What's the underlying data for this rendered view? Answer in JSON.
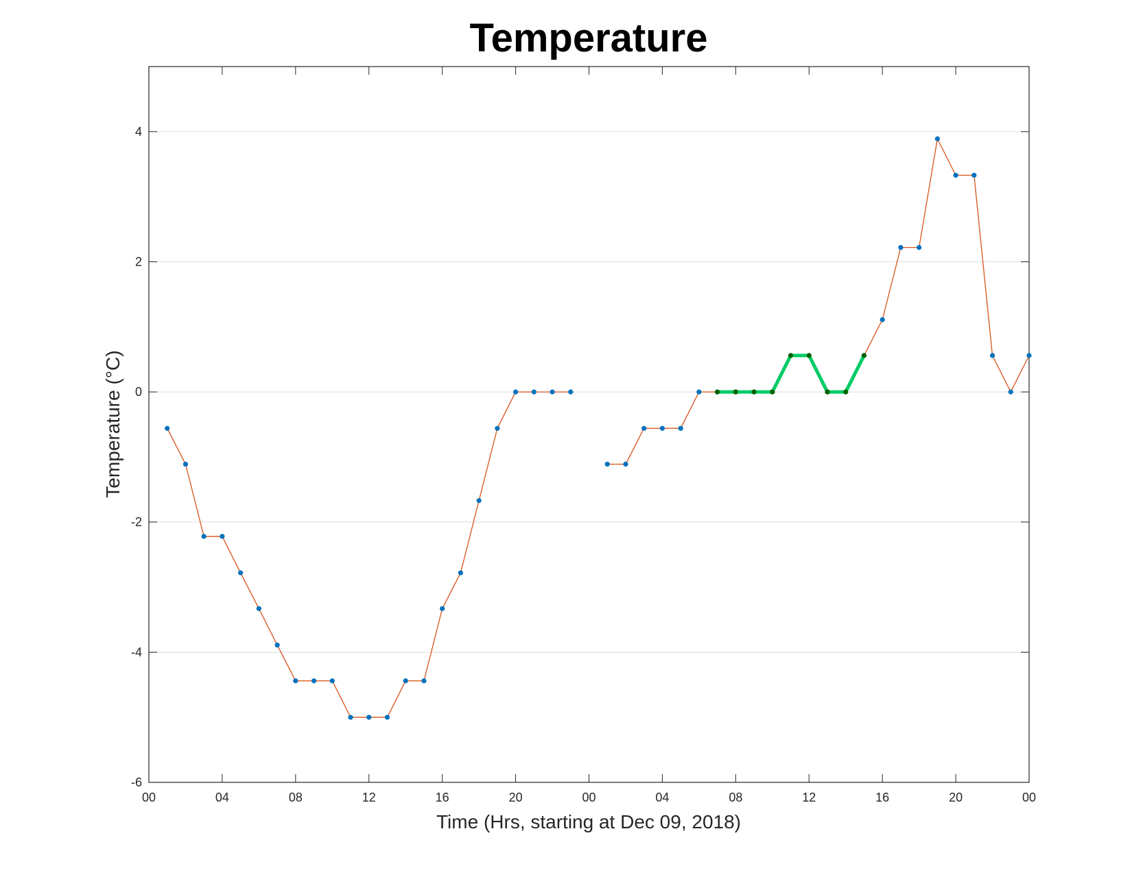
{
  "chart_data": {
    "type": "line",
    "title": "Temperature",
    "xlabel": "Time (Hrs, starting at Dec 09, 2018)",
    "ylabel": "Temperature (°C)",
    "xlim": [
      0,
      48
    ],
    "ylim": [
      -6,
      5
    ],
    "x_ticks": [
      0,
      4,
      8,
      12,
      16,
      20,
      24,
      28,
      32,
      36,
      40,
      44,
      48
    ],
    "x_tick_labels": [
      "00",
      "04",
      "08",
      "12",
      "16",
      "20",
      "00",
      "04",
      "08",
      "12",
      "16",
      "20",
      "00"
    ],
    "y_ticks": [
      -6,
      -4,
      -2,
      0,
      2,
      4
    ],
    "y_tick_labels": [
      "-6",
      "-4",
      "-2",
      "0",
      "2",
      "4"
    ],
    "grid": "horizontal",
    "series": [
      {
        "color": "#D95319",
        "marker_color": "#0072BD",
        "segments": [
          [
            [
              1,
              -0.56
            ],
            [
              2,
              -1.11
            ],
            [
              3,
              -2.22
            ],
            [
              4,
              -2.22
            ],
            [
              5,
              -2.78
            ],
            [
              6,
              -3.33
            ],
            [
              7,
              -3.89
            ],
            [
              8,
              -4.44
            ],
            [
              9,
              -4.44
            ],
            [
              10,
              -4.44
            ],
            [
              11,
              -5.0
            ],
            [
              12,
              -5.0
            ],
            [
              13,
              -5.0
            ],
            [
              14,
              -4.44
            ],
            [
              15,
              -4.44
            ],
            [
              16,
              -3.33
            ],
            [
              17,
              -2.78
            ],
            [
              18,
              -1.67
            ],
            [
              19,
              -0.56
            ],
            [
              20,
              0.0
            ],
            [
              21,
              0.0
            ],
            [
              22,
              0.0
            ],
            [
              23,
              0.0
            ]
          ],
          [
            [
              25,
              -1.11
            ],
            [
              26,
              -1.11
            ],
            [
              27,
              -0.56
            ],
            [
              28,
              -0.56
            ],
            [
              29,
              -0.56
            ],
            [
              30,
              0.0
            ],
            [
              31,
              0.0
            ],
            [
              32,
              0.0
            ],
            [
              33,
              0.0
            ],
            [
              34,
              0.0
            ],
            [
              35,
              0.56
            ],
            [
              36,
              0.56
            ],
            [
              37,
              0.0
            ],
            [
              38,
              0.0
            ],
            [
              39,
              0.56
            ],
            [
              40,
              1.11
            ],
            [
              41,
              2.22
            ],
            [
              42,
              2.22
            ],
            [
              43,
              3.89
            ],
            [
              44,
              3.33
            ],
            [
              45,
              3.33
            ],
            [
              46,
              0.56
            ],
            [
              47,
              0.0
            ],
            [
              48,
              0.56
            ]
          ]
        ]
      },
      {
        "color": "#00CC66",
        "marker_color": "#006400",
        "highlight": true,
        "segments": [
          [
            [
              31,
              0.0
            ],
            [
              32,
              0.0
            ],
            [
              33,
              0.0
            ],
            [
              34,
              0.0
            ],
            [
              35,
              0.56
            ],
            [
              36,
              0.56
            ],
            [
              37,
              0.0
            ],
            [
              38,
              0.0
            ],
            [
              39,
              0.56
            ]
          ]
        ]
      }
    ]
  }
}
